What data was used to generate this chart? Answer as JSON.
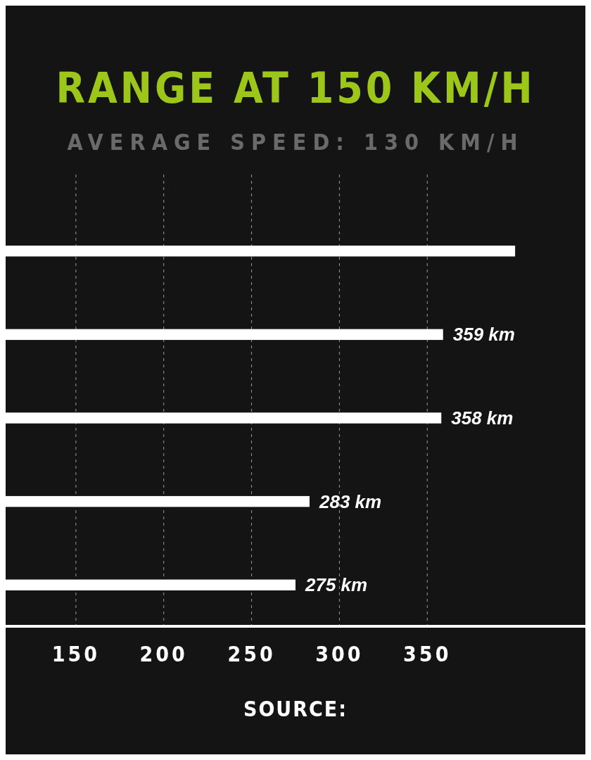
{
  "chart_data": {
    "type": "bar",
    "orientation": "horizontal",
    "title": "RANGE AT 150 KM/H",
    "subtitle": "AVERAGE SPEED: 130 KM/H",
    "categories": [
      null,
      null,
      null,
      null,
      null
    ],
    "values": [
      400,
      359,
      358,
      283,
      275
    ],
    "value_labels": [
      null,
      "359 km",
      "358 km",
      "283 km",
      "275 km"
    ],
    "color": "#ffffff",
    "xlim": [
      110,
      440
    ],
    "xticks": [
      150,
      200,
      250,
      300,
      350
    ],
    "grid": "x",
    "annotations": [
      "SOURCE:"
    ]
  }
}
